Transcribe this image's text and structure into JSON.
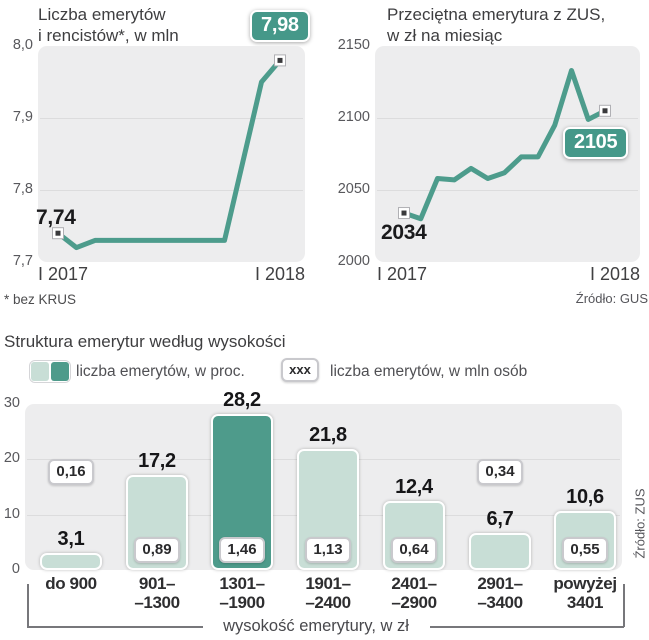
{
  "colors": {
    "line": "#4d9c8c",
    "bar_light": "#c8ded6",
    "bar_dark": "#4e9b8b",
    "badge_teal_bg": "#459889",
    "plot_bg": "#ededee",
    "gridline": "#dcdcdd"
  },
  "chart_data": [
    {
      "type": "line",
      "title_text": "Liczba emerytów\ni rencistów*, w mln",
      "x_start_label": "I 2017",
      "x_end_label": "I 2018",
      "ylim": [
        7.7,
        8.0
      ],
      "yticks": [
        {
          "v": 8.0,
          "label": "8,0"
        },
        {
          "v": 7.9,
          "label": "7,9"
        },
        {
          "v": 7.8,
          "label": "7,8"
        },
        {
          "v": 7.7,
          "label": "7,7"
        }
      ],
      "values": [
        7.74,
        7.72,
        7.73,
        7.73,
        7.73,
        7.73,
        7.73,
        7.73,
        7.73,
        7.73,
        7.84,
        7.95,
        7.98
      ],
      "first_value_label": "7,74",
      "last_value_badge": "7,98",
      "footnote": "* bez KRUS"
    },
    {
      "type": "line",
      "title_text": "Przeciętna emerytura z ZUS,\nw zł na miesiąc",
      "x_start_label": "I 2017",
      "x_end_label": "I 2018",
      "ylim": [
        2000,
        2150
      ],
      "yticks": [
        {
          "v": 2150,
          "label": "2150"
        },
        {
          "v": 2100,
          "label": "2100"
        },
        {
          "v": 2050,
          "label": "2050"
        },
        {
          "v": 2000,
          "label": "2000"
        }
      ],
      "values": [
        2034,
        2030,
        2058,
        2057,
        2065,
        2058,
        2062,
        2073,
        2073,
        2095,
        2133,
        2099,
        2105
      ],
      "first_value_label": "2034",
      "last_value_badge": "2105",
      "source": "Źródło: GUS"
    },
    {
      "type": "bar",
      "title": "Struktura emerytur według wysokości",
      "legend": [
        {
          "label": "liczba emerytów, w proc.",
          "swatch": "teal-pair"
        },
        {
          "label": "liczba emerytów, w mln osób",
          "swatch_badge": "xxx"
        }
      ],
      "ylim": [
        0,
        30
      ],
      "yticks": [
        {
          "v": 30,
          "label": "30"
        },
        {
          "v": 20,
          "label": "20"
        },
        {
          "v": 10,
          "label": "10"
        },
        {
          "v": 0,
          "label": "0"
        }
      ],
      "categories": [
        [
          "do 900"
        ],
        [
          "901–",
          "–1300"
        ],
        [
          "1301–",
          "–1900"
        ],
        [
          "1901–",
          "–2400"
        ],
        [
          "2401–",
          "–2900"
        ],
        [
          "2901–",
          "–3400"
        ],
        [
          "powyżej",
          "3401"
        ]
      ],
      "series": [
        {
          "name": "liczba emerytów, w proc.",
          "values": [
            3.1,
            17.2,
            28.2,
            21.8,
            12.4,
            6.7,
            10.6
          ],
          "labels": [
            "3,1",
            "17,2",
            "28,2",
            "21,8",
            "12,4",
            "6,7",
            "10,6"
          ]
        },
        {
          "name": "liczba emerytów, w mln osób",
          "labels": [
            "0,16",
            "0,89",
            "1,46",
            "1,13",
            "0,64",
            "0,34",
            "0,55"
          ],
          "label_inside_bar": [
            false,
            true,
            true,
            true,
            true,
            false,
            true
          ]
        }
      ],
      "highlight_index": 2,
      "axis_note": "wysokość emerytury, w zł",
      "source": "Źródło: ZUS"
    }
  ]
}
